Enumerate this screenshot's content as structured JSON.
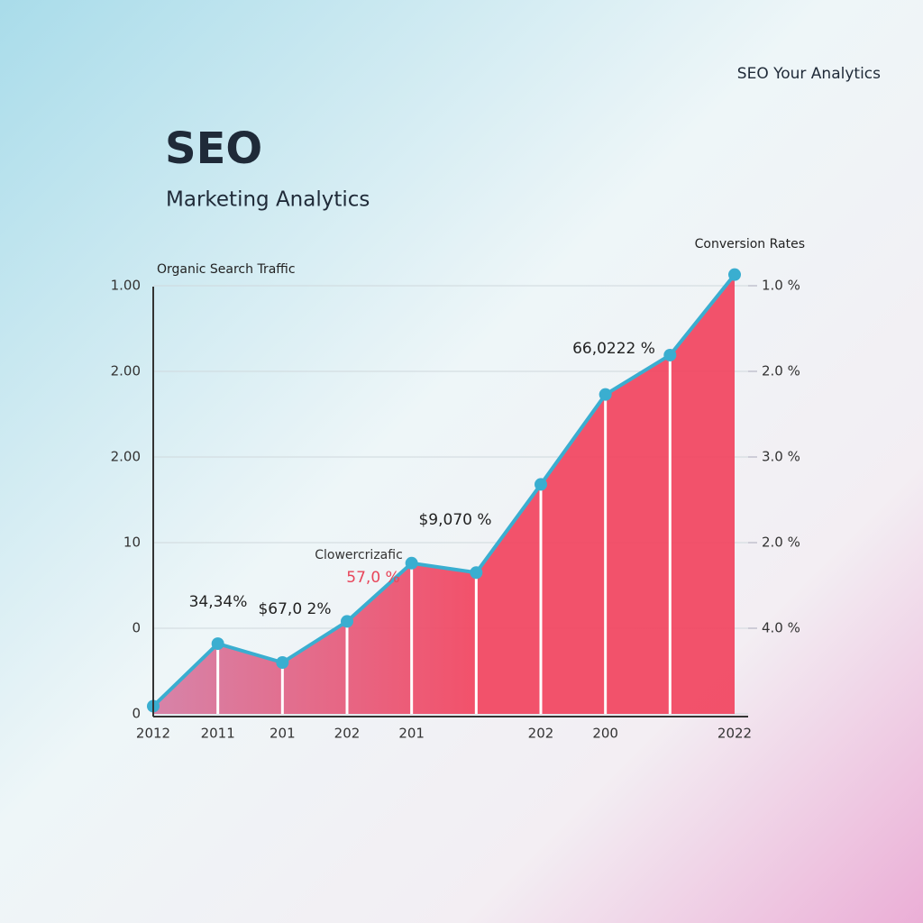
{
  "header": "SEO Your Analytics",
  "chart_data": {
    "type": "area",
    "title": "SEO",
    "subtitle": "Marketing Analytics",
    "y_label": "Organic Search Traffic",
    "y2_label": "Conversion Rates",
    "categories": [
      "2012",
      "2011",
      "201",
      "202",
      "201",
      null,
      "202",
      "200",
      null,
      "2022"
    ],
    "values": [
      0.09,
      0.82,
      0.6,
      1.08,
      1.76,
      1.65,
      2.68,
      3.73,
      4.19,
      5.13
    ],
    "line_color": "#3aaed0",
    "fill_colors": [
      "#d47aa2",
      "#f2445f"
    ],
    "ylim": [
      0,
      5.2
    ],
    "yticks": [
      0,
      {
        "value": 1,
        "label": "0"
      },
      {
        "value": 2,
        "label": "10"
      },
      {
        "value": 3,
        "label": "2.00"
      },
      {
        "value": 4,
        "label": "2.00"
      },
      {
        "value": 5,
        "label": "1.00"
      }
    ],
    "y2lim": [
      0,
      5.2
    ],
    "y2ticks": [
      {
        "value": 1,
        "label": "4.0 %"
      },
      {
        "value": 2,
        "label": "2.0 %"
      },
      {
        "value": 3,
        "label": "3.0 %"
      },
      {
        "value": 4,
        "label": "2.0 %"
      },
      {
        "value": 5,
        "label": "1.0 %"
      }
    ],
    "grid": true,
    "annotations": [
      {
        "text": "34,34%",
        "color": "#222222"
      },
      {
        "text": "$67,0 2%",
        "color": "#222222"
      },
      {
        "text": "Clowercrizafic",
        "color": "#333333"
      },
      {
        "text": "57,0 %",
        "color": "#e8455a"
      },
      {
        "text": "$9,070 %",
        "color": "#222222"
      },
      {
        "text": "66,0222 %",
        "color": "#222222"
      }
    ]
  }
}
